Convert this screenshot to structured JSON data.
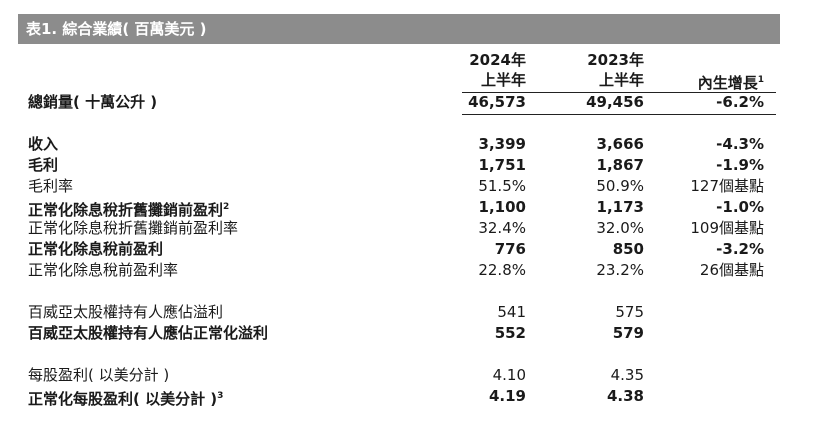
{
  "title": "表1. 綜合業績( 百萬美元 )",
  "columns": {
    "col1_line1": "2024年",
    "col1_line2": "上半年",
    "col2_line1": "2023年",
    "col2_line2": "上半年",
    "col3": "內生增長",
    "col3_note": "1"
  },
  "rows": [
    {
      "label": "總銷量( 十萬公升 )",
      "note": "",
      "v1": "46,573",
      "v2": "49,456",
      "v3": "-6.2%",
      "bold": true
    },
    {
      "label": "收入",
      "note": "",
      "v1": "3,399",
      "v2": "3,666",
      "v3": "-4.3%",
      "bold": true
    },
    {
      "label": "毛利",
      "note": "",
      "v1": "1,751",
      "v2": "1,867",
      "v3": "-1.9%",
      "bold": true
    },
    {
      "label": "毛利率",
      "note": "",
      "v1": "51.5%",
      "v2": "50.9%",
      "v3": "127個基點",
      "bold": false
    },
    {
      "label": "正常化除息稅折舊攤銷前盈利",
      "note": "2",
      "v1": "1,100",
      "v2": "1,173",
      "v3": "-1.0%",
      "bold": true
    },
    {
      "label": "正常化除息稅折舊攤銷前盈利率",
      "note": "",
      "v1": "32.4%",
      "v2": "32.0%",
      "v3": "109個基點",
      "bold": false
    },
    {
      "label": "正常化除息稅前盈利",
      "note": "",
      "v1": "776",
      "v2": "850",
      "v3": "-3.2%",
      "bold": true
    },
    {
      "label": "正常化除息稅前盈利率",
      "note": "",
      "v1": "22.8%",
      "v2": "23.2%",
      "v3": "26個基點",
      "bold": false
    },
    {
      "label": "百威亞太股權持有人應佔溢利",
      "note": "",
      "v1": "541",
      "v2": "575",
      "v3": "",
      "bold": false
    },
    {
      "label": "百威亞太股權持有人應佔正常化溢利",
      "note": "",
      "v1": "552",
      "v2": "579",
      "v3": "",
      "bold": true
    },
    {
      "label": "每股盈利( 以美分計 )",
      "note": "",
      "v1": "4.10",
      "v2": "4.35",
      "v3": "",
      "bold": false
    },
    {
      "label": "正常化每股盈利( 以美分計 )",
      "note": "3",
      "v1": "4.19",
      "v2": "4.38",
      "v3": "",
      "bold": true
    }
  ]
}
